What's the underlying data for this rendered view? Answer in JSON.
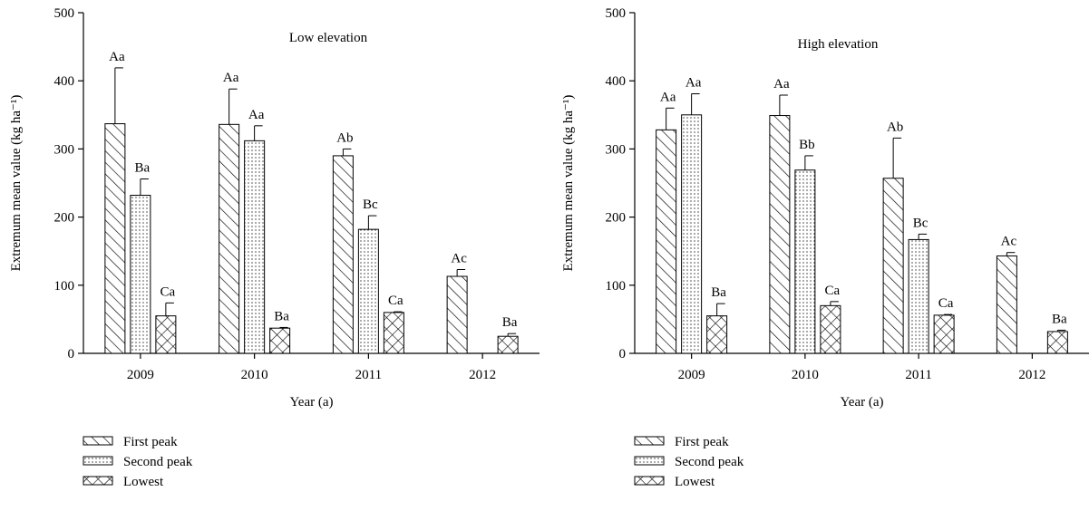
{
  "chart_data": [
    {
      "type": "bar",
      "title": "Low elevation",
      "xlabel": "Year (a)",
      "ylabel": "Extremum mean value (kg ha⁻¹)",
      "ylim": [
        0,
        500
      ],
      "yticks": [
        0,
        100,
        200,
        300,
        400,
        500
      ],
      "categories": [
        "2009",
        "2010",
        "2011",
        "2012"
      ],
      "legend_position": "bottom",
      "series": [
        {
          "name": "First peak",
          "pattern": "diagonal-hatch",
          "values": [
            337,
            336,
            290,
            113
          ],
          "errors": [
            82,
            52,
            10,
            10
          ],
          "labels": [
            "Aa",
            "Aa",
            "Ab",
            "Ac"
          ]
        },
        {
          "name": "Second peak",
          "pattern": "dotted",
          "values": [
            232,
            312,
            182,
            null
          ],
          "errors": [
            24,
            22,
            20,
            null
          ],
          "labels": [
            "Ba",
            "Aa",
            "Bc",
            null
          ]
        },
        {
          "name": "Lowest",
          "pattern": "cross-hatch",
          "values": [
            55,
            37,
            60,
            25
          ],
          "errors": [
            19,
            1,
            1,
            4
          ],
          "labels": [
            "Ca",
            "Ba",
            "Ca",
            "Ba"
          ]
        }
      ]
    },
    {
      "type": "bar",
      "title": "High elevation",
      "xlabel": "Year (a)",
      "ylabel": "Extremum mean value (kg ha⁻¹)",
      "ylim": [
        0,
        500
      ],
      "yticks": [
        0,
        100,
        200,
        300,
        400,
        500
      ],
      "categories": [
        "2009",
        "2010",
        "2011",
        "2012"
      ],
      "legend_position": "bottom",
      "series": [
        {
          "name": "First peak",
          "pattern": "diagonal-hatch",
          "values": [
            328,
            349,
            257,
            143
          ],
          "errors": [
            32,
            30,
            59,
            5
          ],
          "labels": [
            "Aa",
            "Aa",
            "Ab",
            "Ac"
          ]
        },
        {
          "name": "Second peak",
          "pattern": "dotted",
          "values": [
            350,
            269,
            167,
            null
          ],
          "errors": [
            31,
            21,
            8,
            null
          ],
          "labels": [
            "Aa",
            "Bb",
            "Bc",
            null
          ]
        },
        {
          "name": "Lowest",
          "pattern": "cross-hatch",
          "values": [
            55,
            70,
            56,
            32
          ],
          "errors": [
            18,
            6,
            1,
            2
          ],
          "labels": [
            "Ba",
            "Ca",
            "Ca",
            "Ba"
          ]
        }
      ]
    }
  ]
}
